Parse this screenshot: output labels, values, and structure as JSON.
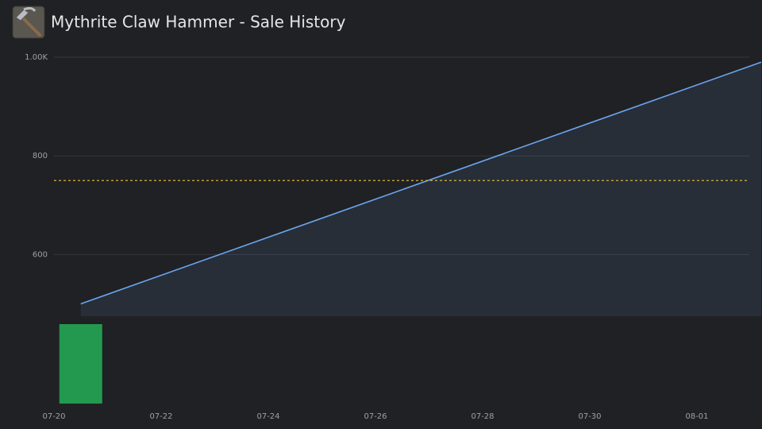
{
  "chart_data": {
    "type": "line",
    "title": "Mythrite Claw Hammer - Sale History",
    "x": [
      0.5,
      13.2
    ],
    "xlim": [
      0,
      13.2
    ],
    "xticks": [
      {
        "value": 0,
        "label": "07-20"
      },
      {
        "value": 2,
        "label": "07-22"
      },
      {
        "value": 4,
        "label": "07-24"
      },
      {
        "value": 6,
        "label": "07-26"
      },
      {
        "value": 8,
        "label": "07-28"
      },
      {
        "value": 10,
        "label": "07-30"
      },
      {
        "value": 12,
        "label": "08-01"
      }
    ],
    "series": [
      {
        "color": "#6aa6f0",
        "values": [
          500,
          990
        ]
      }
    ],
    "ylim": [
      475,
      1000
    ],
    "yticks": [
      {
        "value": 1000,
        "label": "1.00K"
      },
      800,
      600
    ],
    "grid": true,
    "reference_line": {
      "value": 750,
      "color": "#d4b23a"
    },
    "volume": {
      "color": "#23994f",
      "x": [
        0.5
      ],
      "values": [
        1
      ],
      "ylim": [
        0,
        1
      ]
    }
  }
}
